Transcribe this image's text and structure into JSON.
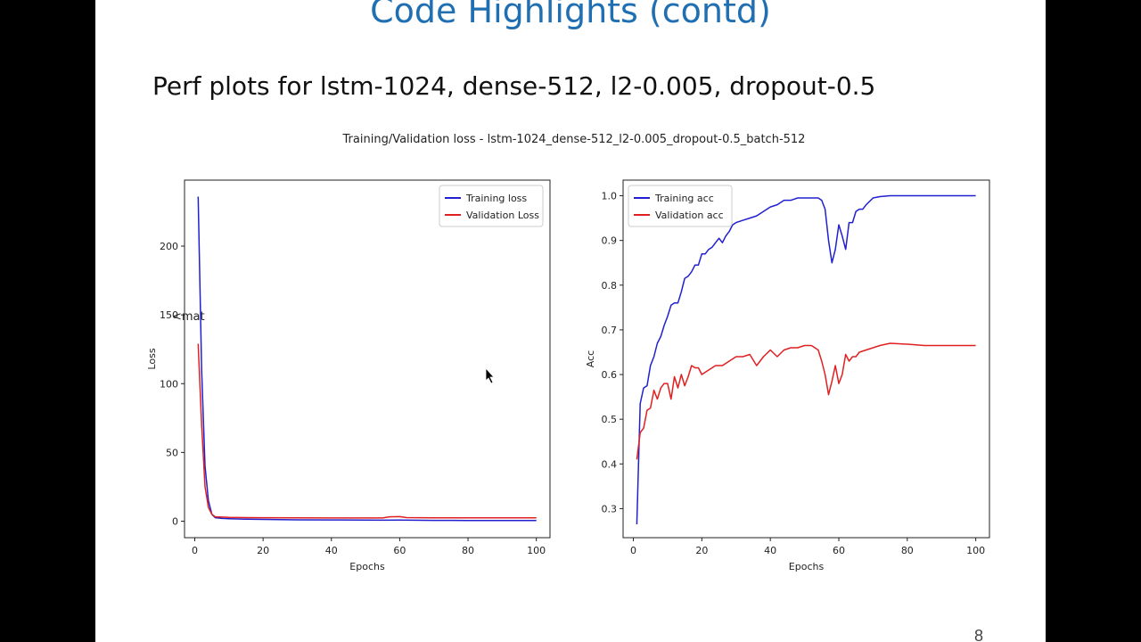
{
  "slide": {
    "title": "Code Highlights (contd)",
    "subtitle": "Perf plots for lstm-1024, dense-512, l2-0.005, dropout-0.5",
    "page_number": "8",
    "stray_text": "<mat"
  },
  "chart_data": [
    {
      "type": "line",
      "suptitle": "Training/Validation loss - lstm-1024_dense-512_l2-0.005_dropout-0.5_batch-512",
      "title": "",
      "xlabel": "Epochs",
      "ylabel": "Loss",
      "xlim": [
        -3,
        104
      ],
      "ylim": [
        -12,
        248
      ],
      "xticks": [
        0,
        20,
        40,
        60,
        80,
        100
      ],
      "xtick_labels": [
        "0",
        "20",
        "40",
        "60",
        "80",
        "100"
      ],
      "yticks": [
        0,
        50,
        100,
        150,
        200
      ],
      "ytick_labels": [
        "0",
        "50",
        "100",
        "150",
        "200"
      ],
      "grid": false,
      "legend": "upper right",
      "series": [
        {
          "name": "Training loss",
          "color": "#2020d0",
          "x": [
            1,
            2,
            3,
            4,
            5,
            6,
            8,
            10,
            15,
            20,
            30,
            40,
            50,
            55,
            60,
            70,
            80,
            90,
            100
          ],
          "y": [
            236,
            110,
            40,
            15,
            5,
            2.5,
            2.0,
            1.8,
            1.5,
            1.3,
            1.0,
            0.9,
            0.8,
            0.7,
            0.8,
            0.6,
            0.5,
            0.5,
            0.5
          ]
        },
        {
          "name": "Validation Loss",
          "color": "#e02020",
          "x": [
            1,
            2,
            3,
            4,
            5,
            6,
            8,
            10,
            15,
            20,
            30,
            40,
            50,
            55,
            57,
            60,
            62,
            70,
            80,
            90,
            100
          ],
          "y": [
            129,
            70,
            25,
            10,
            5,
            3.2,
            3.0,
            2.8,
            2.6,
            2.5,
            2.4,
            2.3,
            2.3,
            2.3,
            3.2,
            3.3,
            2.6,
            2.4,
            2.4,
            2.4,
            2.4
          ]
        }
      ]
    },
    {
      "type": "line",
      "title": "",
      "xlabel": "Epochs",
      "ylabel": "Acc",
      "xlim": [
        -3,
        104
      ],
      "ylim": [
        0.235,
        1.035
      ],
      "xticks": [
        0,
        20,
        40,
        60,
        80,
        100
      ],
      "xtick_labels": [
        "0",
        "20",
        "40",
        "60",
        "80",
        "100"
      ],
      "yticks": [
        0.3,
        0.4,
        0.5,
        0.6,
        0.7,
        0.8,
        0.9,
        1.0
      ],
      "ytick_labels": [
        "0.3",
        "0.4",
        "0.5",
        "0.6",
        "0.7",
        "0.8",
        "0.9",
        "1.0"
      ],
      "grid": false,
      "legend": "upper left",
      "series": [
        {
          "name": "Training acc",
          "color": "#2020d0",
          "x": [
            1,
            2,
            3,
            4,
            5,
            6,
            7,
            8,
            9,
            10,
            11,
            12,
            13,
            14,
            15,
            16,
            17,
            18,
            19,
            20,
            21,
            22,
            23,
            24,
            25,
            26,
            27,
            28,
            29,
            30,
            32,
            34,
            36,
            38,
            40,
            42,
            44,
            46,
            48,
            50,
            52,
            54,
            55,
            56,
            57,
            58,
            59,
            60,
            61,
            62,
            63,
            64,
            65,
            66,
            67,
            68,
            70,
            72,
            75,
            80,
            85,
            90,
            95,
            100
          ],
          "y": [
            0.265,
            0.535,
            0.57,
            0.575,
            0.62,
            0.64,
            0.67,
            0.685,
            0.71,
            0.73,
            0.755,
            0.76,
            0.76,
            0.785,
            0.815,
            0.82,
            0.83,
            0.845,
            0.845,
            0.87,
            0.87,
            0.88,
            0.885,
            0.895,
            0.905,
            0.895,
            0.91,
            0.92,
            0.935,
            0.94,
            0.945,
            0.95,
            0.955,
            0.965,
            0.975,
            0.98,
            0.99,
            0.99,
            0.995,
            0.995,
            0.995,
            0.995,
            0.99,
            0.97,
            0.9,
            0.85,
            0.88,
            0.935,
            0.91,
            0.88,
            0.94,
            0.94,
            0.965,
            0.97,
            0.97,
            0.98,
            0.995,
            0.998,
            1.0,
            1.0,
            1.0,
            1.0,
            1.0,
            1.0
          ]
        },
        {
          "name": "Validation acc",
          "color": "#e02020",
          "x": [
            1,
            2,
            3,
            4,
            5,
            6,
            7,
            8,
            9,
            10,
            11,
            12,
            13,
            14,
            15,
            16,
            17,
            18,
            19,
            20,
            22,
            24,
            26,
            28,
            30,
            32,
            34,
            36,
            38,
            40,
            42,
            44,
            46,
            48,
            50,
            52,
            54,
            55,
            56,
            57,
            58,
            59,
            60,
            61,
            62,
            63,
            64,
            65,
            66,
            68,
            70,
            72,
            75,
            80,
            85,
            90,
            95,
            100
          ],
          "y": [
            0.41,
            0.47,
            0.48,
            0.52,
            0.525,
            0.565,
            0.545,
            0.57,
            0.58,
            0.58,
            0.545,
            0.595,
            0.57,
            0.6,
            0.575,
            0.595,
            0.62,
            0.615,
            0.615,
            0.6,
            0.61,
            0.62,
            0.62,
            0.63,
            0.64,
            0.64,
            0.645,
            0.62,
            0.64,
            0.655,
            0.64,
            0.655,
            0.66,
            0.66,
            0.665,
            0.665,
            0.655,
            0.63,
            0.6,
            0.555,
            0.585,
            0.62,
            0.58,
            0.6,
            0.645,
            0.63,
            0.64,
            0.64,
            0.65,
            0.655,
            0.66,
            0.665,
            0.67,
            0.668,
            0.665,
            0.665,
            0.665,
            0.665
          ]
        }
      ]
    }
  ]
}
